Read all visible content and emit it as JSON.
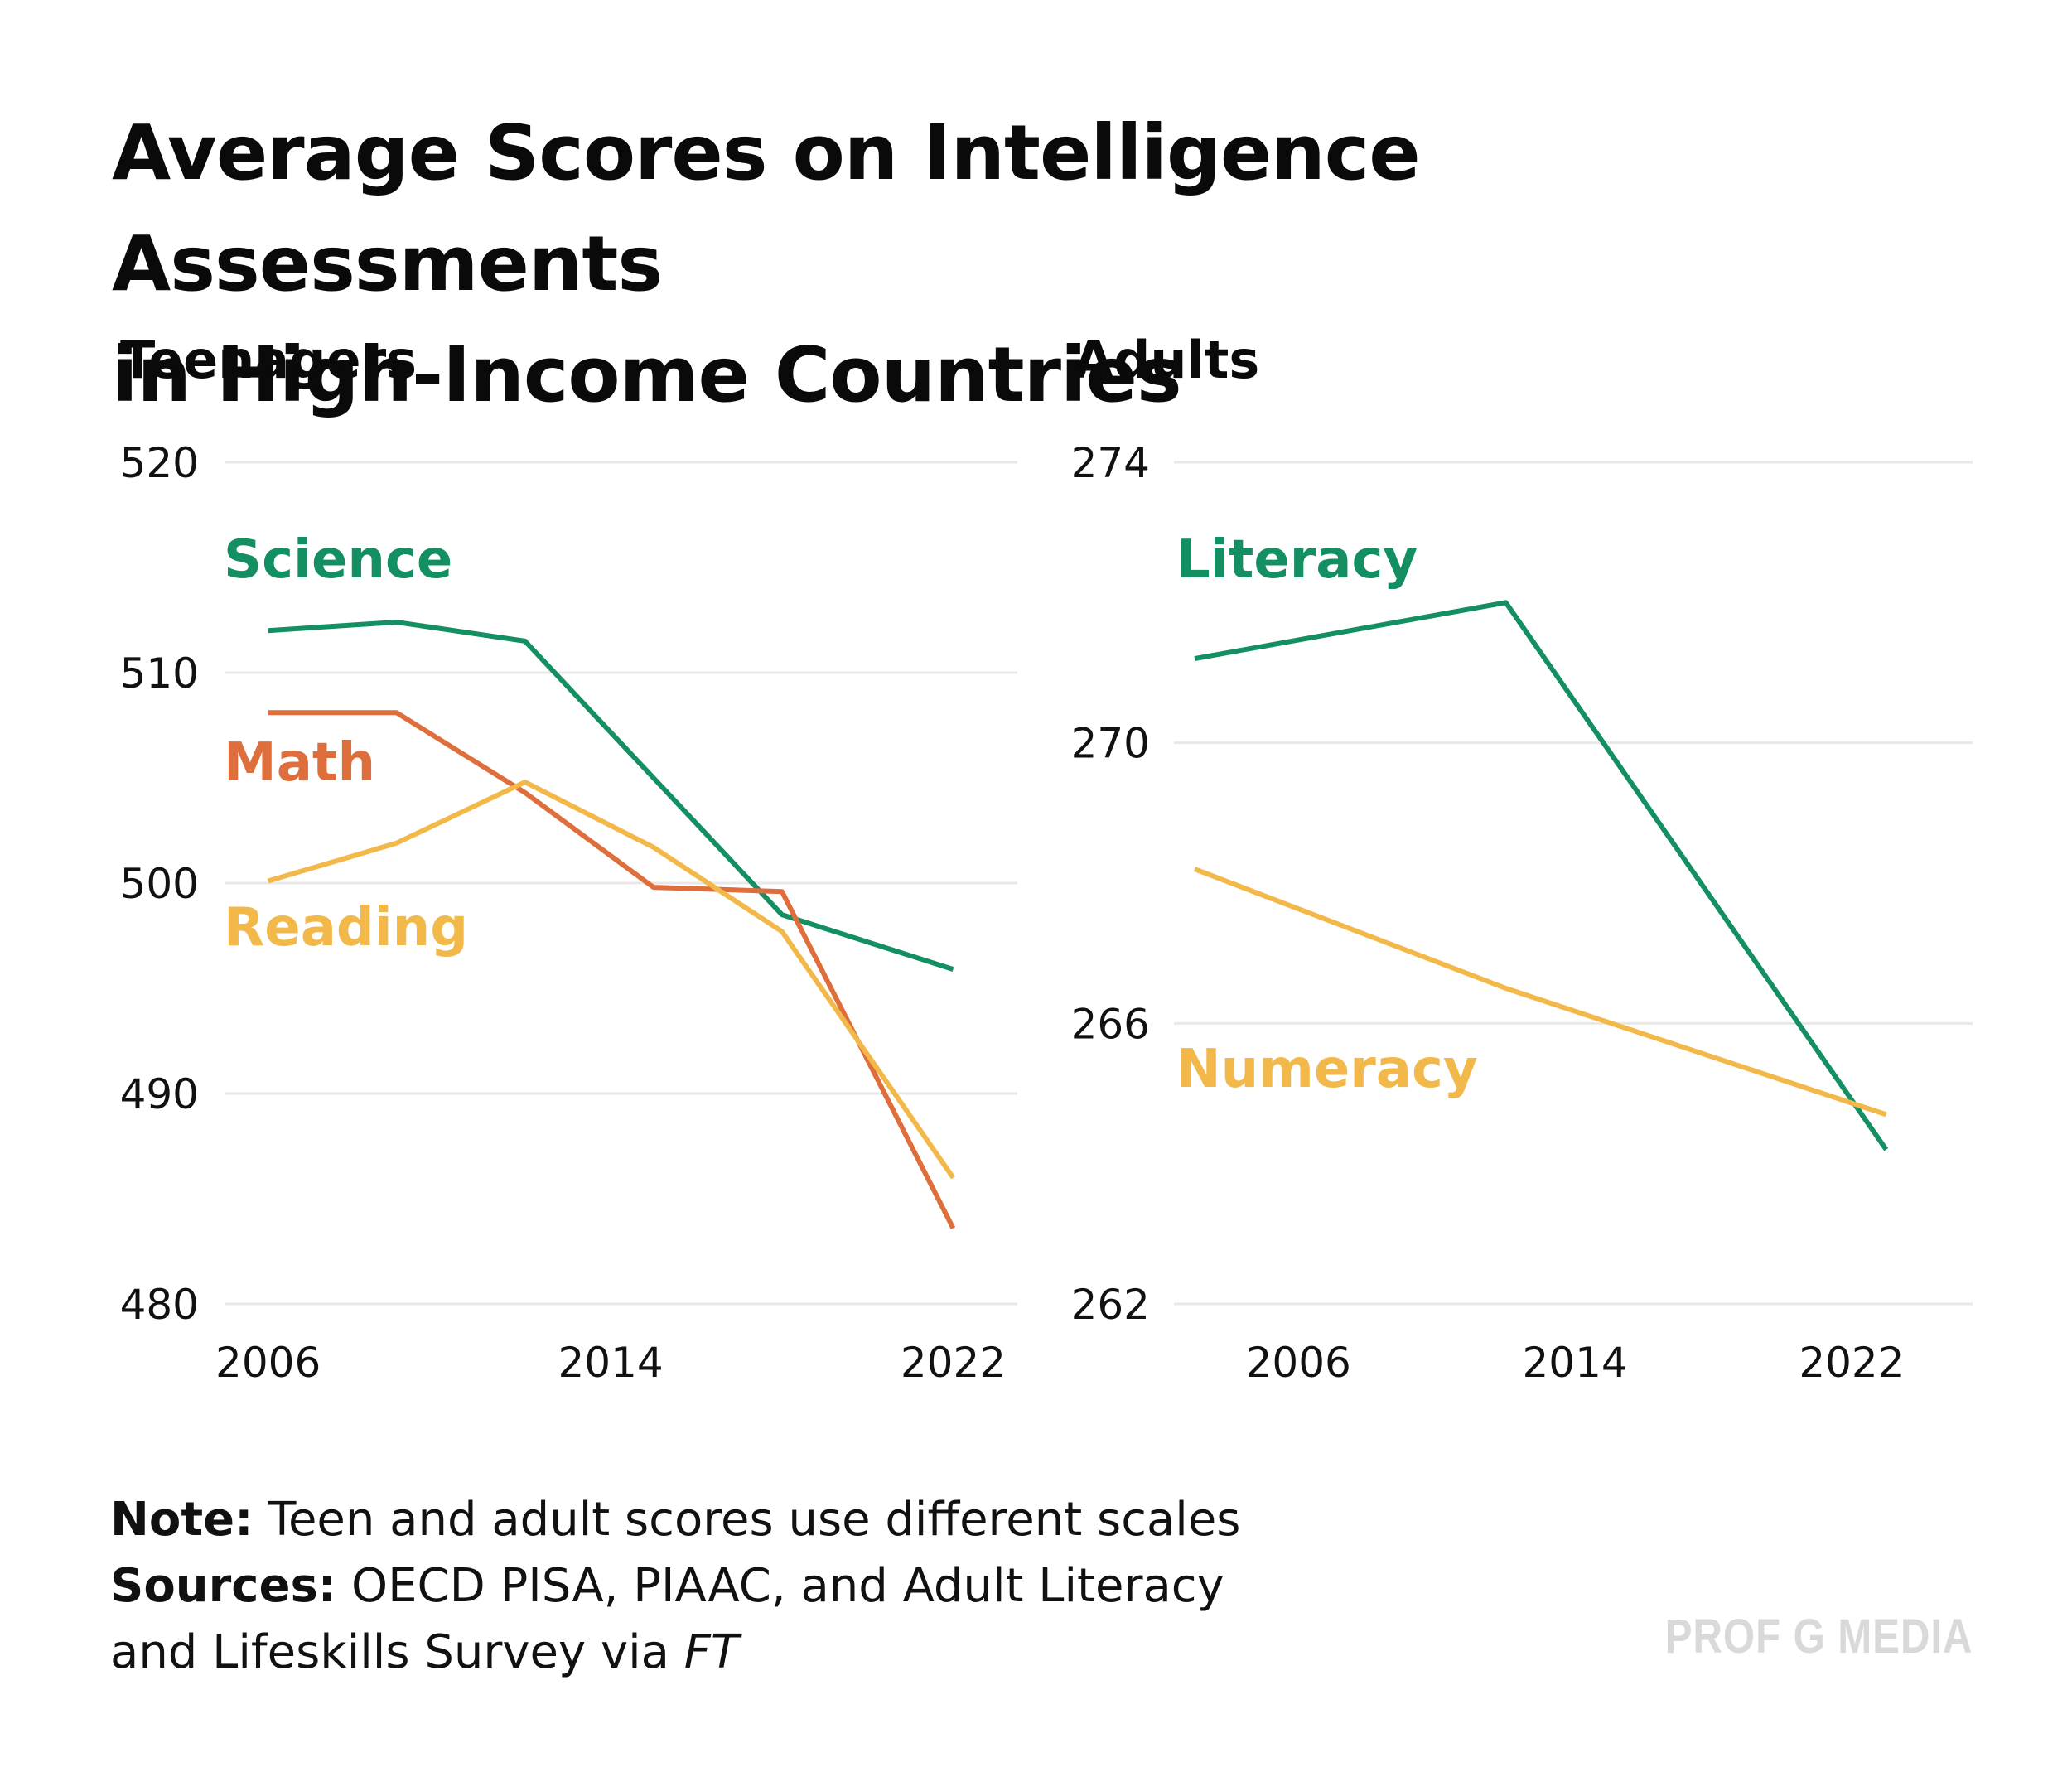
{
  "title_line1": "Average Scores on Intelligence Assessments",
  "title_line2": "in High-Income Countries",
  "colors": {
    "science": "#138f61",
    "math": "#de6f3d",
    "reading": "#f2b94a",
    "grid": "#e8e8e8",
    "text": "#111111"
  },
  "chart_data": [
    {
      "type": "line",
      "title": "Teenagers",
      "xlabel": "",
      "ylabel": "",
      "xlim": [
        2005,
        2023.5
      ],
      "ylim": [
        480,
        520
      ],
      "yticks": [
        520,
        510,
        500,
        490,
        480
      ],
      "xticks": [
        2006,
        2014,
        2022
      ],
      "series": [
        {
          "name": "Science",
          "color": "#138f61",
          "x": [
            2006,
            2009,
            2012,
            2015,
            2018,
            2022
          ],
          "y": [
            512,
            512.4,
            511.5,
            505,
            498.5,
            495.9
          ]
        },
        {
          "name": "Math",
          "color": "#de6f3d",
          "x": [
            2006,
            2009,
            2012,
            2015,
            2018,
            2022
          ],
          "y": [
            508.1,
            508.1,
            504.3,
            499.8,
            499.6,
            483.6
          ]
        },
        {
          "name": "Reading",
          "color": "#f2b94a",
          "x": [
            2006,
            2009,
            2012,
            2015,
            2018,
            2022
          ],
          "y": [
            500.1,
            501.9,
            504.8,
            501.7,
            497.7,
            486
          ]
        }
      ]
    },
    {
      "type": "line",
      "title": "Adults",
      "xlabel": "",
      "ylabel": "",
      "xlim": [
        2002.4,
        2025.5
      ],
      "ylim": [
        262,
        274
      ],
      "yticks": [
        274,
        270,
        266,
        262
      ],
      "xticks": [
        2006,
        2014,
        2022
      ],
      "series": [
        {
          "name": "Literacy",
          "color": "#138f61",
          "x": [
            2003,
            2012,
            2023
          ],
          "y": [
            271.2,
            272,
            264.2
          ]
        },
        {
          "name": "Numeracy",
          "color": "#f2b94a",
          "x": [
            2003,
            2012,
            2023
          ],
          "y": [
            268.2,
            266.5,
            264.7
          ]
        }
      ]
    }
  ],
  "footer": {
    "note_label": "Note:",
    "note_text": " Teen and adult scores use different scales",
    "sources_label": "Sources:",
    "sources_text": " OECD PISA, PIAAC, and Adult Literacy",
    "sources_line2": "and Lifeskills Survey via ",
    "sources_italic": "FT"
  },
  "watermark": "PROF G MEDIA"
}
